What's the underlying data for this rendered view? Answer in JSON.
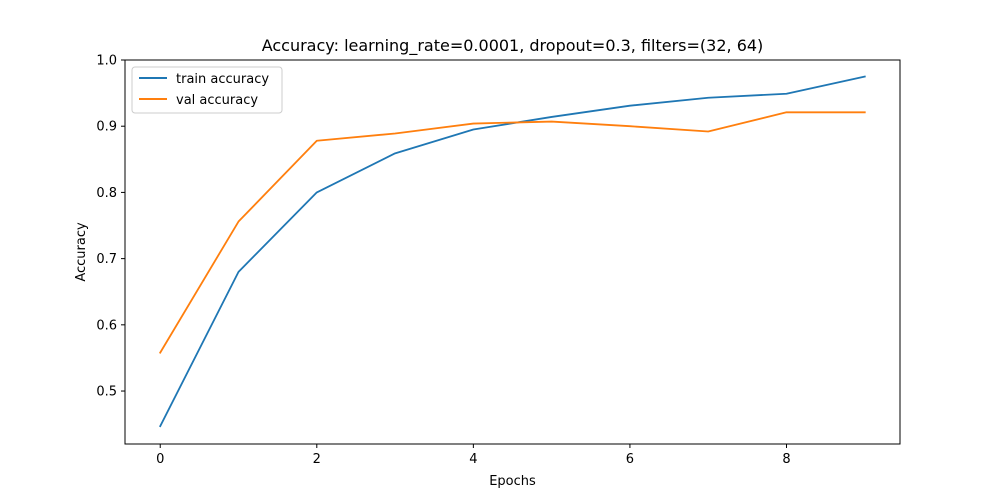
{
  "chart_data": {
    "type": "line",
    "title": "Accuracy: learning_rate=0.0001, dropout=0.3, filters=(32, 64)",
    "xlabel": "Epochs",
    "ylabel": "Accuracy",
    "x": [
      0,
      1,
      2,
      3,
      4,
      5,
      6,
      7,
      8,
      9
    ],
    "xlim": [
      -0.45,
      9.45
    ],
    "ylim": [
      0.42,
      1.0
    ],
    "xticks": [
      0,
      2,
      4,
      6,
      8
    ],
    "yticks": [
      0.5,
      0.6,
      0.7,
      0.8,
      0.9,
      1.0
    ],
    "xtick_labels": [
      "0",
      "2",
      "4",
      "6",
      "8"
    ],
    "ytick_labels": [
      "0.5",
      "0.6",
      "0.7",
      "0.8",
      "0.9",
      "1.0"
    ],
    "grid": false,
    "legend_position": "upper-left",
    "series": [
      {
        "name": "train accuracy",
        "color": "#1f77b4",
        "values": [
          0.447,
          0.68,
          0.8,
          0.859,
          0.895,
          0.914,
          0.931,
          0.943,
          0.949,
          0.975
        ]
      },
      {
        "name": "val accuracy",
        "color": "#ff7f0e",
        "values": [
          0.558,
          0.756,
          0.878,
          0.889,
          0.904,
          0.907,
          0.9,
          0.892,
          0.921,
          0.921
        ]
      }
    ]
  }
}
